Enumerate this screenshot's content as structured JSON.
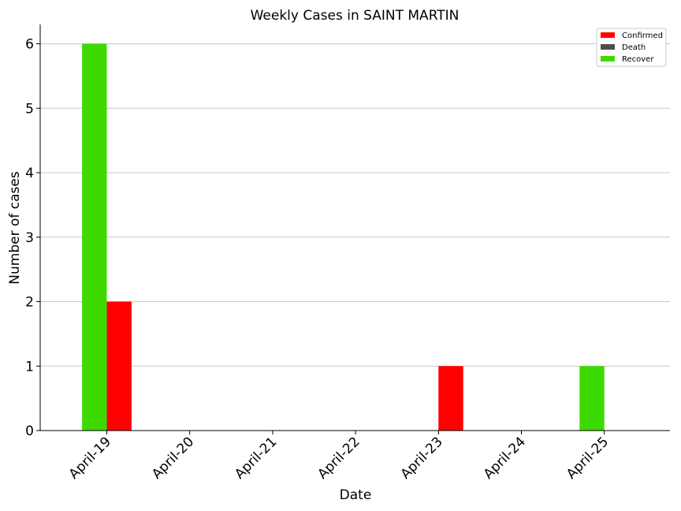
{
  "chart_data": {
    "type": "bar",
    "title": "Weekly Cases in SAINT MARTIN",
    "xlabel": "Date",
    "ylabel": "Number of cases",
    "categories": [
      "April-19",
      "April-20",
      "April-21",
      "April-22",
      "April-23",
      "April-24",
      "April-25"
    ],
    "yticks": [
      0,
      1,
      2,
      3,
      4,
      5,
      6
    ],
    "ylim": [
      0,
      6.3
    ],
    "grid": "horizontal",
    "legend_position": "top-right",
    "series": [
      {
        "name": "Confirmed",
        "color": "#ff0000",
        "values": [
          2,
          0,
          0,
          0,
          1,
          0,
          0
        ]
      },
      {
        "name": "Death",
        "color": "#4d4d4d",
        "values": [
          0,
          0,
          0,
          0,
          0,
          0,
          0
        ]
      },
      {
        "name": "Recover",
        "color": "#3dda00",
        "values": [
          6,
          0,
          0,
          0,
          0,
          0,
          1
        ]
      }
    ]
  }
}
